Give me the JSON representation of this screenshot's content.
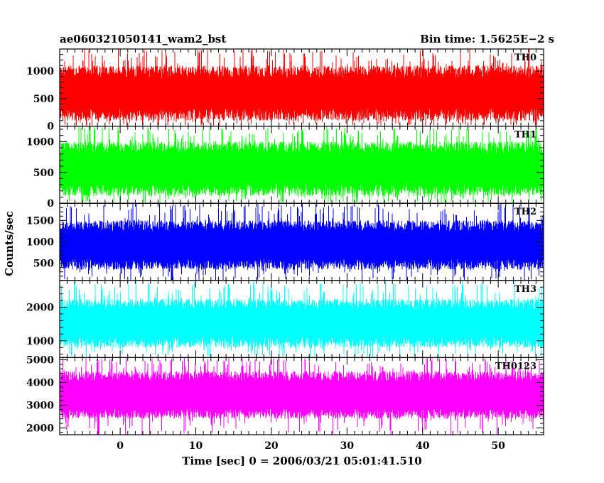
{
  "chart_data": {
    "type": "line",
    "title_left": "ae060321050141_wam2_bst",
    "title_right": "Bin time: 1.5625E−2 s",
    "xlabel": "Time [sec] 0 = 2006/03/21 05:01:41.510",
    "ylabel": "Counts/sec",
    "xlim": [
      -8,
      56
    ],
    "x_ticks": [
      0,
      10,
      20,
      30,
      40,
      50
    ],
    "x_range": [
      -8,
      56
    ],
    "series": [
      {
        "name": "TH0",
        "color": "#ff0000",
        "ylim": [
          0,
          1400
        ],
        "y_ticks": [
          0,
          500,
          1000
        ],
        "typical_range": [
          100,
          1100
        ],
        "spike_range": [
          0,
          1400
        ]
      },
      {
        "name": "TH1",
        "color": "#00ff00",
        "ylim": [
          0,
          1250
        ],
        "y_ticks": [
          0,
          500,
          1000
        ],
        "typical_range": [
          120,
          1000
        ],
        "spike_range": [
          0,
          1250
        ]
      },
      {
        "name": "TH2",
        "color": "#0000ff",
        "ylim": [
          100,
          1900
        ],
        "y_ticks": [
          500,
          1000,
          1500
        ],
        "typical_range": [
          350,
          1500
        ],
        "spike_range": [
          100,
          1900
        ]
      },
      {
        "name": "TH3",
        "color": "#00ffff",
        "ylim": [
          500,
          2800
        ],
        "y_ticks": [
          1000,
          2000
        ],
        "typical_range": [
          800,
          2250
        ],
        "spike_range": [
          500,
          2800
        ]
      },
      {
        "name": "TH0123",
        "color": "#ff00ff",
        "ylim": [
          1700,
          5100
        ],
        "y_ticks": [
          2000,
          3000,
          4000,
          5000
        ],
        "typical_range": [
          2400,
          4500
        ],
        "spike_range": [
          1700,
          5100
        ]
      }
    ]
  }
}
